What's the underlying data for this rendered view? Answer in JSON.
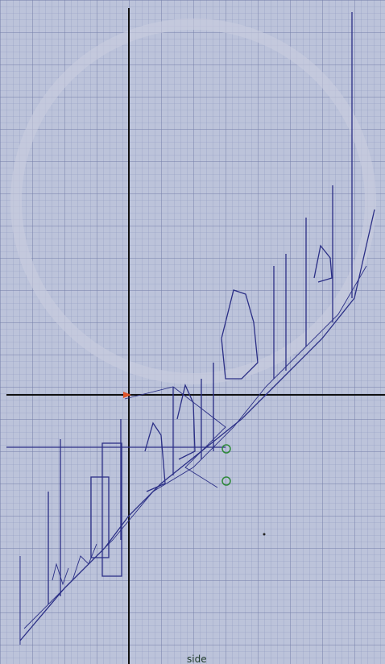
{
  "viewport": {
    "label": "side"
  }
}
